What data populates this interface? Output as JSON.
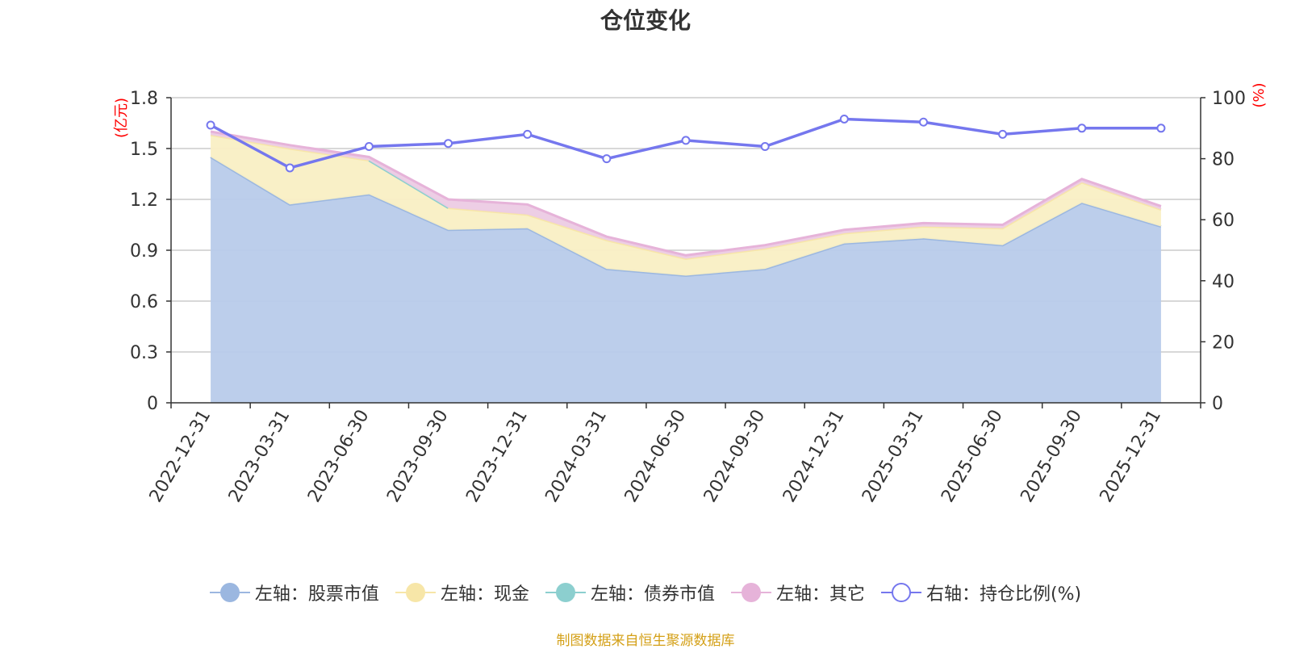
{
  "chart_data": {
    "type": "area",
    "title": "仓位变化",
    "source": "制图数据来自恒生聚源数据库",
    "left_axis": {
      "unit": "(亿元)",
      "min": 0,
      "max": 1.8,
      "ticks": [
        "0",
        "0.3",
        "0.6",
        "0.9",
        "1.2",
        "1.5",
        "1.8"
      ]
    },
    "right_axis": {
      "unit": "(%)",
      "min": 0,
      "max": 100,
      "ticks": [
        "0",
        "20",
        "40",
        "60",
        "80",
        "100"
      ]
    },
    "categories": [
      "2022-12-31",
      "2023-03-31",
      "2023-06-30",
      "2023-09-30",
      "2023-12-31",
      "2024-03-31",
      "2024-06-30",
      "2024-09-30",
      "2024-12-31",
      "2025-03-31",
      "2025-06-30",
      "2025-09-30",
      "2025-12-31"
    ],
    "series": [
      {
        "name": "左轴：股票市值",
        "axis": "left",
        "stack": true,
        "color": "#9bb7e0",
        "fill": "#b8cbea",
        "values": [
          1.45,
          1.17,
          1.23,
          1.02,
          1.03,
          0.79,
          0.75,
          0.79,
          0.94,
          0.97,
          0.93,
          1.18,
          1.04
        ]
      },
      {
        "name": "左轴：现金",
        "axis": "left",
        "stack": true,
        "color": "#f7e6a8",
        "fill": "#f9efc4",
        "values": [
          0.13,
          0.33,
          0.2,
          0.13,
          0.08,
          0.17,
          0.1,
          0.12,
          0.06,
          0.07,
          0.1,
          0.12,
          0.1
        ]
      },
      {
        "name": "左轴：债券市值",
        "axis": "left",
        "stack": true,
        "color": "#8ccfcf",
        "fill": "#bfe4e4",
        "values": [
          null,
          null,
          0.0,
          0.0,
          null,
          null,
          null,
          null,
          null,
          null,
          null,
          null,
          null
        ]
      },
      {
        "name": "左轴：其它",
        "axis": "left",
        "stack": true,
        "color": "#e6b3d9",
        "fill": "#eccbe4",
        "values": [
          0.02,
          0.02,
          0.02,
          0.05,
          0.06,
          0.02,
          0.02,
          0.02,
          0.02,
          0.02,
          0.02,
          0.02,
          0.02
        ]
      },
      {
        "name": "右轴：持仓比例(%)",
        "axis": "right",
        "stack": false,
        "color": "#7577ee",
        "values": [
          91,
          77,
          84,
          85,
          88,
          80,
          86,
          84,
          93,
          92,
          88,
          90,
          90
        ]
      }
    ],
    "grid": true,
    "legend_position": "bottom"
  }
}
